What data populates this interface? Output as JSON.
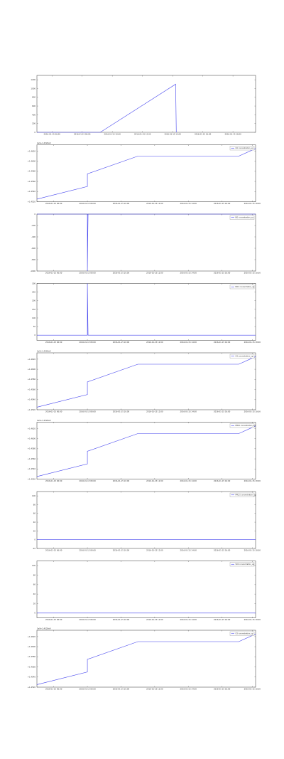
{
  "chart_data": [
    {
      "type": "line",
      "series": [
        {
          "x": [
            0,
            42,
            92,
            92.4
          ],
          "y": [
            0,
            0,
            1100,
            0
          ]
        }
      ],
      "xlim": [
        0,
        145
      ],
      "ylim": [
        0,
        1300
      ],
      "xticks": [
        10,
        30,
        50,
        70,
        90,
        110,
        130
      ],
      "xtick_labels": [
        "2016-01-15 06:00",
        "2016-01-15 08:00",
        "2016-01-15 10:00",
        "2016-01-15 12:00",
        "2016-01-15 14:00",
        "2016-01-15 16:00",
        "2016-01-15 18:00"
      ],
      "yticks": [
        0,
        200,
        400,
        600,
        800,
        1000,
        1200
      ],
      "ytick_labels": [
        "0",
        "200",
        "400",
        "600",
        "800",
        "1000",
        "1200"
      ],
      "offset_label": "",
      "legend": null,
      "grid": false
    },
    {
      "type": "line",
      "series": [
        {
          "name": "CO concentration_ug",
          "x": [
            0,
            30,
            30,
            60,
            120,
            130
          ],
          "y": [
            2,
            12,
            22,
            36,
            36,
            42
          ]
        }
      ],
      "xlim": [
        0,
        130
      ],
      "ylim": [
        0,
        45
      ],
      "xticks": [
        10,
        30,
        50,
        70,
        90,
        110,
        128
      ],
      "xtick_labels": [
        "2016-01-15 06:00",
        "2016-01-15 08:00",
        "2016-01-15 10:00",
        "2016-01-15 12:00",
        "2016-01-15 14:00",
        "2016-01-15 16:00",
        "2016-01-15 18:00"
      ],
      "yticks": [
        0,
        8,
        16,
        24,
        32,
        40
      ],
      "ytick_labels": [
        "+1.4520",
        "+1.4540",
        "+1.4560",
        "+1.4580",
        "+1.4600",
        "+1.4620"
      ],
      "offset_label": "1e9+1.4520e9",
      "legend": "top-right",
      "grid": false
    },
    {
      "type": "line",
      "series": [
        {
          "name": "NO concentration_ug",
          "x": [
            0,
            30,
            30,
            30.4,
            130
          ],
          "y": [
            0,
            0,
            -1000,
            0,
            0
          ]
        }
      ],
      "xlim": [
        0,
        130
      ],
      "ylim": [
        -1000,
        0
      ],
      "xticks": [
        10,
        30,
        50,
        70,
        90,
        110,
        128
      ],
      "xtick_labels": [
        "2016-01-15 06:00",
        "2016-01-15 08:00",
        "2016-01-15 10:00",
        "2016-01-15 12:00",
        "2016-01-15 14:00",
        "2016-01-15 16:00",
        "2016-01-15 18:00"
      ],
      "yticks": [
        0,
        -200,
        -400,
        -600,
        -800,
        -1000
      ],
      "ytick_labels": [
        "0",
        "-200",
        "-400",
        "-600",
        "-800",
        "-1000"
      ],
      "offset_label": "",
      "legend": "top-right",
      "grid": false
    },
    {
      "type": "line",
      "series": [
        {
          "name": "NO2 concentration_ug",
          "x": [
            0,
            30,
            30,
            30.4,
            130
          ],
          "y": [
            0,
            0,
            300,
            0,
            0
          ]
        }
      ],
      "xlim": [
        0,
        130
      ],
      "ylim": [
        -30,
        300
      ],
      "xticks": [
        10,
        30,
        50,
        70,
        90,
        110,
        128
      ],
      "xtick_labels": [
        "2016-01-15 06:00",
        "2016-01-15 08:00",
        "2016-01-15 10:00",
        "2016-01-15 12:00",
        "2016-01-15 14:00",
        "2016-01-15 16:00",
        "2016-01-15 18:00"
      ],
      "yticks": [
        0,
        50,
        100,
        150,
        200,
        250,
        300
      ],
      "ytick_labels": [
        "0",
        "50",
        "100",
        "150",
        "200",
        "250",
        "300"
      ],
      "offset_label": "",
      "legend": "top-right",
      "grid": false
    },
    {
      "type": "line",
      "series": [
        {
          "name": "O3 concentration_ug",
          "x": [
            0,
            30,
            30,
            60,
            120,
            130
          ],
          "y": [
            2,
            12,
            22,
            36,
            36,
            42
          ]
        }
      ],
      "xlim": [
        0,
        130
      ],
      "ylim": [
        0,
        45
      ],
      "xticks": [
        10,
        30,
        50,
        70,
        90,
        110,
        128
      ],
      "xtick_labels": [
        "2016-01-15 06:00",
        "2016-01-15 08:00",
        "2016-01-15 10:00",
        "2016-01-15 12:00",
        "2016-01-15 14:00",
        "2016-01-15 16:00",
        "2016-01-15 18:00"
      ],
      "yticks": [
        0,
        8,
        16,
        24,
        32,
        40
      ],
      "ytick_labels": [
        "+1.4520",
        "+1.4540",
        "+1.4560",
        "+1.4580",
        "+1.4600",
        "+1.4620"
      ],
      "offset_label": "1e9+1.4520e9",
      "legend": "top-right",
      "grid": false
    },
    {
      "type": "line",
      "series": [
        {
          "name": "PM10 concentration_ug",
          "x": [
            0,
            30,
            30,
            60,
            120,
            130
          ],
          "y": [
            2,
            12,
            22,
            36,
            36,
            42
          ]
        }
      ],
      "xlim": [
        0,
        130
      ],
      "ylim": [
        0,
        45
      ],
      "xticks": [
        10,
        30,
        50,
        70,
        90,
        110,
        128
      ],
      "xtick_labels": [
        "2016-01-15 06:00",
        "2016-01-15 08:00",
        "2016-01-15 10:00",
        "2016-01-15 12:00",
        "2016-01-15 14:00",
        "2016-01-15 16:00",
        "2016-01-15 18:00"
      ],
      "yticks": [
        0,
        8,
        16,
        24,
        32,
        40
      ],
      "ytick_labels": [
        "+1.4520",
        "+1.4540",
        "+1.4560",
        "+1.4580",
        "+1.4600",
        "+1.4620"
      ],
      "offset_label": "1e9+1.4520e9",
      "legend": "top-right",
      "grid": false
    },
    {
      "type": "line",
      "series": [
        {
          "name": "PM2.5 concentration_ug",
          "x": [
            0,
            130
          ],
          "y": [
            0,
            0
          ]
        }
      ],
      "xlim": [
        0,
        130
      ],
      "ylim": [
        -20,
        110
      ],
      "xticks": [
        10,
        30,
        50,
        70,
        90,
        110,
        128
      ],
      "xtick_labels": [
        "2016-01-15 06:00",
        "2016-01-15 08:00",
        "2016-01-15 10:00",
        "2016-01-15 12:00",
        "2016-01-15 14:00",
        "2016-01-15 16:00",
        "2016-01-15 18:00"
      ],
      "yticks": [
        -20,
        0,
        20,
        40,
        60,
        80,
        100
      ],
      "ytick_labels": [
        "-20",
        "0",
        "20",
        "40",
        "60",
        "80",
        "100"
      ],
      "offset_label": "",
      "legend": "top-right",
      "grid": false
    },
    {
      "type": "line",
      "series": [
        {
          "name": "SO2 concentration_ug",
          "x": [
            0,
            130
          ],
          "y": [
            0,
            0
          ]
        }
      ],
      "xlim": [
        0,
        130
      ],
      "ylim": [
        -10,
        110
      ],
      "xticks": [
        10,
        30,
        50,
        70,
        90,
        110,
        128
      ],
      "xtick_labels": [
        "2016-01-15 06:00",
        "2016-01-15 08:00",
        "2016-01-15 10:00",
        "2016-01-15 12:00",
        "2016-01-15 14:00",
        "2016-01-15 16:00",
        "2016-01-15 18:00"
      ],
      "yticks": [
        0,
        20,
        40,
        60,
        80,
        100
      ],
      "ytick_labels": [
        "0",
        "20",
        "40",
        "60",
        "80",
        "100"
      ],
      "offset_label": "",
      "legend": "top-right",
      "grid": false
    },
    {
      "type": "line",
      "series": [
        {
          "name": "O3 concentration_ug",
          "x": [
            0,
            30,
            30,
            60,
            120,
            130
          ],
          "y": [
            2,
            12,
            22,
            36,
            36,
            42
          ]
        }
      ],
      "xlim": [
        0,
        130
      ],
      "ylim": [
        0,
        45
      ],
      "xticks": [
        10,
        30,
        50,
        70,
        90,
        110,
        128
      ],
      "xtick_labels": [
        "2016-01-15 06:00",
        "2016-01-15 08:00",
        "2016-01-15 10:00",
        "2016-01-15 12:00",
        "2016-01-15 14:00",
        "2016-01-15 16:00",
        "2016-01-15 18:00"
      ],
      "yticks": [
        0,
        8,
        16,
        24,
        32,
        40
      ],
      "ytick_labels": [
        "+1.4520",
        "+1.4540",
        "+1.4560",
        "+1.4580",
        "+1.4600",
        "+1.4620"
      ],
      "offset_label": "1e9+1.4520e9",
      "legend": "top-right",
      "grid": false
    }
  ],
  "colors": {
    "line": "#4444ee",
    "axis": "#555555",
    "text": "#333333"
  }
}
